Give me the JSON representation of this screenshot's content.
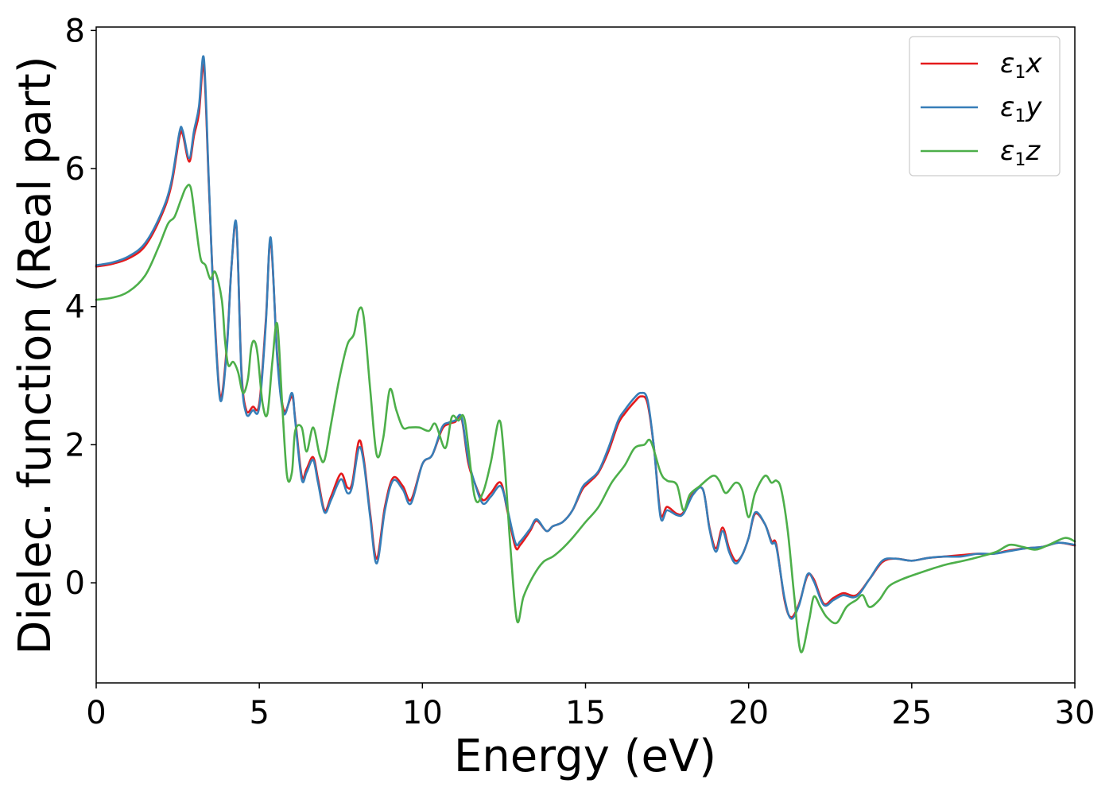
{
  "chart_data": {
    "type": "line",
    "title": "",
    "xlabel": "Energy (eV)",
    "ylabel": "Dielec. function (Real part)",
    "xlim": [
      0,
      30
    ],
    "ylim": [
      -1.45,
      8.05
    ],
    "xticks": [
      0,
      5,
      10,
      15,
      20,
      25,
      30
    ],
    "yticks": [
      0,
      2,
      4,
      6,
      8
    ],
    "grid": false,
    "legend_position": "top-right",
    "series": [
      {
        "name": "ε1x",
        "legend_base": "ε",
        "legend_sub": "1",
        "legend_var": "x",
        "color": "#e41a1c",
        "x": [
          0,
          0.5,
          1.0,
          1.5,
          2.0,
          2.3,
          2.55,
          2.65,
          2.85,
          3.0,
          3.15,
          3.3,
          3.45,
          3.6,
          3.8,
          4.0,
          4.15,
          4.3,
          4.45,
          4.6,
          4.8,
          5.0,
          5.2,
          5.35,
          5.55,
          5.75,
          6.0,
          6.1,
          6.3,
          6.45,
          6.65,
          6.8,
          7.0,
          7.2,
          7.5,
          7.7,
          7.85,
          8.05,
          8.2,
          8.4,
          8.6,
          8.85,
          9.1,
          9.4,
          9.65,
          10.0,
          10.3,
          10.6,
          10.8,
          11.0,
          11.2,
          11.4,
          11.6,
          11.85,
          12.1,
          12.4,
          12.6,
          12.85,
          13.0,
          13.3,
          13.5,
          13.8,
          14.0,
          14.3,
          14.6,
          14.9,
          15.1,
          15.4,
          15.7,
          16.0,
          16.2,
          16.5,
          16.7,
          16.9,
          17.1,
          17.3,
          17.5,
          17.8,
          18.0,
          18.3,
          18.6,
          18.8,
          19.0,
          19.2,
          19.4,
          19.6,
          19.8,
          20.0,
          20.2,
          20.5,
          20.7,
          20.85,
          21.1,
          21.3,
          21.55,
          21.8,
          22.0,
          22.3,
          22.6,
          22.9,
          23.3,
          23.7,
          24.1,
          24.5,
          25.0,
          25.5,
          26.0,
          26.5,
          27.0,
          27.5,
          28.0,
          28.5,
          29.0,
          29.5,
          30.0
        ],
        "y": [
          4.58,
          4.62,
          4.7,
          4.88,
          5.32,
          5.75,
          6.45,
          6.5,
          6.1,
          6.48,
          6.8,
          7.48,
          5.8,
          4.15,
          2.7,
          3.4,
          4.6,
          5.15,
          3.1,
          2.5,
          2.55,
          2.6,
          3.8,
          4.95,
          3.3,
          2.5,
          2.7,
          2.38,
          1.55,
          1.65,
          1.82,
          1.5,
          1.05,
          1.25,
          1.58,
          1.38,
          1.45,
          2.05,
          1.8,
          1.0,
          0.35,
          1.1,
          1.52,
          1.4,
          1.2,
          1.72,
          1.85,
          2.22,
          2.3,
          2.33,
          2.38,
          1.75,
          1.45,
          1.2,
          1.3,
          1.45,
          1.05,
          0.52,
          0.55,
          0.75,
          0.9,
          0.75,
          0.82,
          0.88,
          1.05,
          1.35,
          1.45,
          1.6,
          1.9,
          2.3,
          2.45,
          2.62,
          2.7,
          2.6,
          1.95,
          1.0,
          1.1,
          1.0,
          1.02,
          1.3,
          1.35,
          0.8,
          0.5,
          0.8,
          0.5,
          0.32,
          0.4,
          0.65,
          1.0,
          0.85,
          0.6,
          0.55,
          -0.25,
          -0.5,
          -0.3,
          0.1,
          0.05,
          -0.3,
          -0.22,
          -0.15,
          -0.18,
          0.05,
          0.3,
          0.35,
          0.32,
          0.36,
          0.38,
          0.4,
          0.42,
          0.42,
          0.47,
          0.5,
          0.52,
          0.58,
          0.54
        ]
      },
      {
        "name": "ε1y",
        "legend_base": "ε",
        "legend_sub": "1",
        "legend_var": "y",
        "color": "#377eb8",
        "x": [
          0,
          0.5,
          1.0,
          1.5,
          2.0,
          2.3,
          2.55,
          2.65,
          2.85,
          3.0,
          3.15,
          3.3,
          3.45,
          3.6,
          3.8,
          4.0,
          4.15,
          4.3,
          4.45,
          4.6,
          4.8,
          5.0,
          5.2,
          5.35,
          5.55,
          5.75,
          6.0,
          6.1,
          6.3,
          6.45,
          6.65,
          6.8,
          7.0,
          7.2,
          7.5,
          7.7,
          7.85,
          8.05,
          8.2,
          8.4,
          8.6,
          8.85,
          9.1,
          9.4,
          9.65,
          10.0,
          10.3,
          10.6,
          10.8,
          11.0,
          11.2,
          11.4,
          11.6,
          11.85,
          12.1,
          12.4,
          12.6,
          12.85,
          13.0,
          13.3,
          13.5,
          13.8,
          14.0,
          14.3,
          14.6,
          14.9,
          15.1,
          15.4,
          15.7,
          16.0,
          16.2,
          16.5,
          16.7,
          16.9,
          17.1,
          17.3,
          17.5,
          17.8,
          18.0,
          18.3,
          18.6,
          18.8,
          19.0,
          19.2,
          19.4,
          19.6,
          19.8,
          20.0,
          20.2,
          20.5,
          20.7,
          20.85,
          21.1,
          21.3,
          21.55,
          21.8,
          22.0,
          22.3,
          22.6,
          22.9,
          23.3,
          23.7,
          24.1,
          24.5,
          25.0,
          25.5,
          26.0,
          26.5,
          27.0,
          27.5,
          28.0,
          28.5,
          29.0,
          29.5,
          30.0
        ],
        "y": [
          4.6,
          4.64,
          4.73,
          4.92,
          5.36,
          5.8,
          6.52,
          6.55,
          6.15,
          6.55,
          6.9,
          7.6,
          5.85,
          4.1,
          2.65,
          3.35,
          4.6,
          5.18,
          3.05,
          2.45,
          2.5,
          2.55,
          3.75,
          5.0,
          3.25,
          2.45,
          2.75,
          2.35,
          1.5,
          1.6,
          1.78,
          1.45,
          1.02,
          1.2,
          1.5,
          1.3,
          1.4,
          1.95,
          1.75,
          0.95,
          0.28,
          1.05,
          1.48,
          1.35,
          1.15,
          1.72,
          1.85,
          2.25,
          2.32,
          2.35,
          2.4,
          1.8,
          1.45,
          1.15,
          1.25,
          1.4,
          1.08,
          0.58,
          0.6,
          0.78,
          0.92,
          0.75,
          0.82,
          0.88,
          1.05,
          1.38,
          1.48,
          1.62,
          1.95,
          2.35,
          2.5,
          2.68,
          2.75,
          2.65,
          1.95,
          0.95,
          1.05,
          0.98,
          1.0,
          1.28,
          1.35,
          0.78,
          0.45,
          0.75,
          0.45,
          0.28,
          0.4,
          0.65,
          1.02,
          0.85,
          0.58,
          0.52,
          -0.22,
          -0.52,
          -0.32,
          0.12,
          0.02,
          -0.32,
          -0.25,
          -0.18,
          -0.2,
          0.05,
          0.32,
          0.35,
          0.32,
          0.36,
          0.38,
          0.38,
          0.42,
          0.42,
          0.46,
          0.5,
          0.52,
          0.58,
          0.55
        ]
      },
      {
        "name": "ε1z",
        "legend_base": "ε",
        "legend_sub": "1",
        "legend_var": "z",
        "color": "#4daf4a",
        "x": [
          0,
          0.5,
          1.0,
          1.5,
          1.9,
          2.2,
          2.4,
          2.6,
          2.75,
          2.9,
          3.05,
          3.2,
          3.35,
          3.5,
          3.65,
          3.85,
          3.95,
          4.05,
          4.2,
          4.35,
          4.5,
          4.65,
          4.75,
          4.85,
          4.95,
          5.1,
          5.25,
          5.4,
          5.55,
          5.7,
          5.85,
          6.0,
          6.1,
          6.3,
          6.45,
          6.65,
          6.85,
          7.0,
          7.2,
          7.45,
          7.7,
          7.9,
          8.05,
          8.2,
          8.4,
          8.6,
          8.8,
          9.0,
          9.2,
          9.4,
          9.6,
          9.9,
          10.2,
          10.4,
          10.7,
          10.9,
          11.1,
          11.3,
          11.6,
          11.85,
          12.1,
          12.35,
          12.5,
          12.7,
          12.9,
          13.1,
          13.4,
          13.7,
          14.0,
          14.3,
          14.6,
          15.0,
          15.4,
          15.8,
          16.2,
          16.5,
          16.8,
          17.0,
          17.3,
          17.5,
          17.8,
          18.0,
          18.2,
          18.5,
          18.9,
          19.1,
          19.3,
          19.6,
          19.8,
          20.0,
          20.2,
          20.5,
          20.7,
          20.85,
          21.0,
          21.2,
          21.4,
          21.6,
          21.85,
          22.0,
          22.2,
          22.4,
          22.7,
          23.0,
          23.3,
          23.5,
          23.7,
          24.0,
          24.3,
          24.7,
          25.1,
          25.6,
          26.1,
          26.6,
          27.1,
          27.6,
          28.0,
          28.4,
          28.8,
          29.2,
          29.7,
          30.0
        ],
        "y": [
          4.1,
          4.13,
          4.22,
          4.45,
          4.85,
          5.2,
          5.3,
          5.55,
          5.72,
          5.72,
          5.2,
          4.7,
          4.6,
          4.4,
          4.5,
          4.1,
          3.5,
          3.15,
          3.2,
          3.05,
          2.75,
          2.95,
          3.4,
          3.5,
          3.3,
          2.6,
          2.45,
          3.2,
          3.75,
          2.6,
          1.55,
          1.6,
          2.2,
          2.25,
          1.9,
          2.25,
          1.85,
          1.78,
          2.3,
          2.95,
          3.45,
          3.6,
          3.95,
          3.85,
          2.8,
          1.85,
          2.1,
          2.8,
          2.5,
          2.25,
          2.25,
          2.25,
          2.2,
          2.3,
          1.95,
          2.4,
          2.35,
          2.35,
          1.25,
          1.3,
          1.75,
          2.35,
          1.85,
          0.5,
          -0.55,
          -0.2,
          0.1,
          0.3,
          0.38,
          0.5,
          0.65,
          0.88,
          1.1,
          1.45,
          1.7,
          1.95,
          2.0,
          2.05,
          1.6,
          1.48,
          1.42,
          1.05,
          1.28,
          1.4,
          1.55,
          1.48,
          1.3,
          1.45,
          1.35,
          0.95,
          1.3,
          1.55,
          1.45,
          1.48,
          1.35,
          0.75,
          -0.2,
          -1.0,
          -0.55,
          -0.2,
          -0.35,
          -0.5,
          -0.58,
          -0.35,
          -0.25,
          -0.18,
          -0.35,
          -0.25,
          -0.05,
          0.05,
          0.12,
          0.2,
          0.27,
          0.32,
          0.38,
          0.45,
          0.55,
          0.52,
          0.48,
          0.55,
          0.65,
          0.6
        ]
      }
    ]
  }
}
